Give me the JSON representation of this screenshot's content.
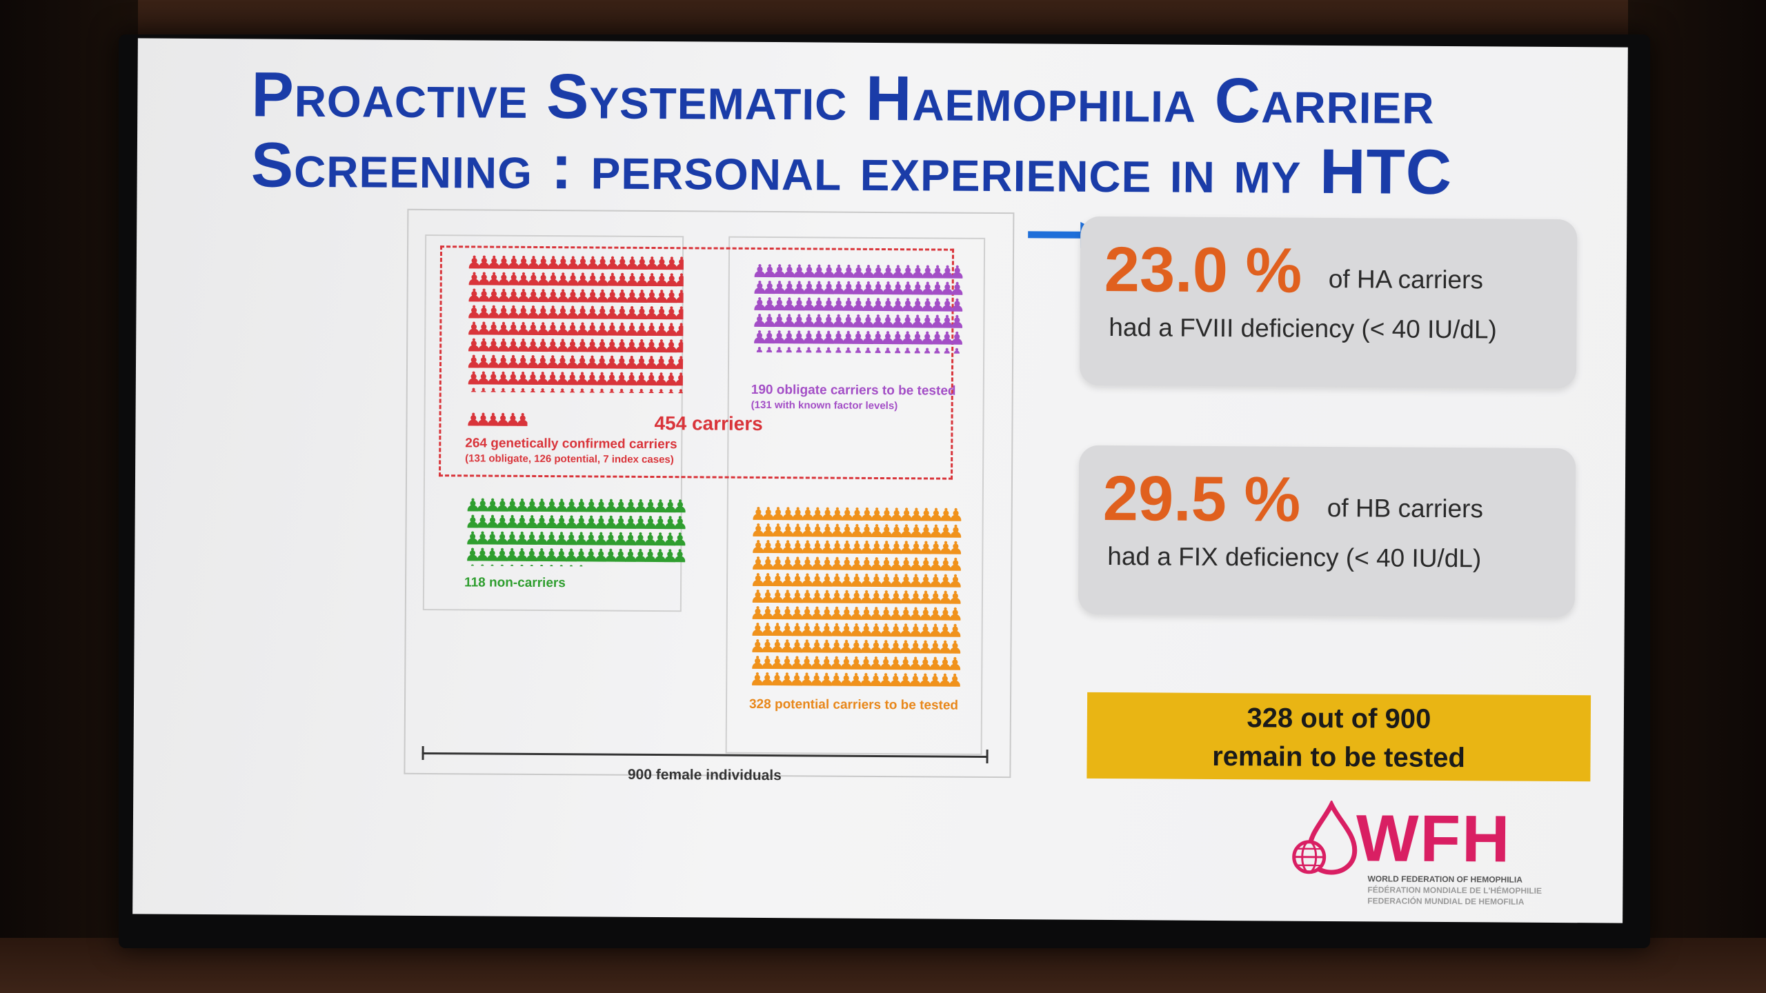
{
  "slide": {
    "title_line1": "Proactive Systematic Haemophilia Carrier",
    "title_line2": "Screening : personal experience in my HTC"
  },
  "infographic": {
    "confirmed_caption": "264 genetically confirmed carriers",
    "confirmed_sub": "(131 obligate, 126 potential, 7 index cases)",
    "carriers_total": "454 carriers",
    "obligate_caption": "190 obligate carriers to be tested",
    "obligate_sub": "(131 with known factor levels)",
    "non_carriers_caption": "118 non-carriers",
    "potential_caption": "328 potential carriers to be tested",
    "axis_label": "900 female individuals",
    "colors": {
      "confirmed": "#d9343a",
      "obligate": "#a34ec6",
      "non_carriers": "#2f9e2f",
      "potential": "#f0921c"
    }
  },
  "stats": [
    {
      "percent": "23.0 %",
      "of": "of HA carriers",
      "desc": "had a FVIII deficiency (< 40 IU/dL)"
    },
    {
      "percent": "29.5 %",
      "of": "of HB carriers",
      "desc": "had a FIX deficiency (< 40 IU/dL)"
    }
  ],
  "remain": {
    "line1": "328 out of 900",
    "line2": "remain to be tested"
  },
  "logo": {
    "word": "WFH",
    "sub1": "WORLD FEDERATION OF HEMOPHILIA",
    "sub2": "FÉDÉRATION MONDIALE DE L'HÉMOPHILIE",
    "sub3": "FEDERACIÓN MUNDIAL DE HEMOFILIA",
    "icon": "blood-drop-globe-icon",
    "color": "#d91f63"
  },
  "arrow_icon": "right-arrow-icon",
  "person_icon": "person-icon"
}
